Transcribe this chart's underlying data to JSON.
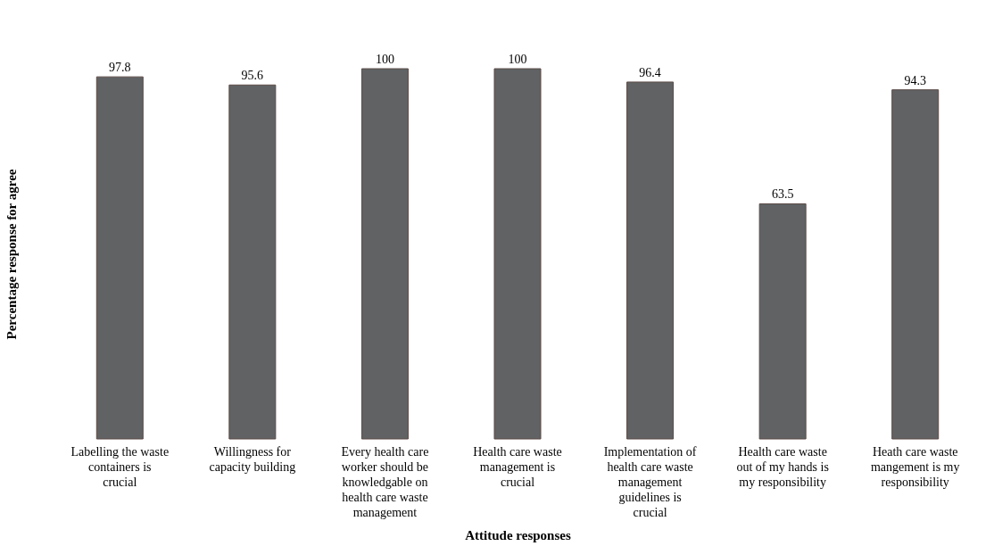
{
  "chart_data": {
    "type": "bar",
    "xlabel": "Attitude responses",
    "ylabel": "Percentage response for agree",
    "categories": [
      "Labelling the waste containers is crucial",
      "Willingness for capacity building",
      "Every health care worker should be knowledgable on health care waste management",
      "Health care waste management is crucial",
      "Implementation of health care waste management guidelines is crucial",
      "Health care waste out of my hands is my responsibility",
      "Heath care waste mangement is my responsibility"
    ],
    "values": [
      97.8,
      95.6,
      100,
      100,
      96.4,
      63.5,
      94.3
    ],
    "color": "#606264",
    "data_labels": true
  }
}
